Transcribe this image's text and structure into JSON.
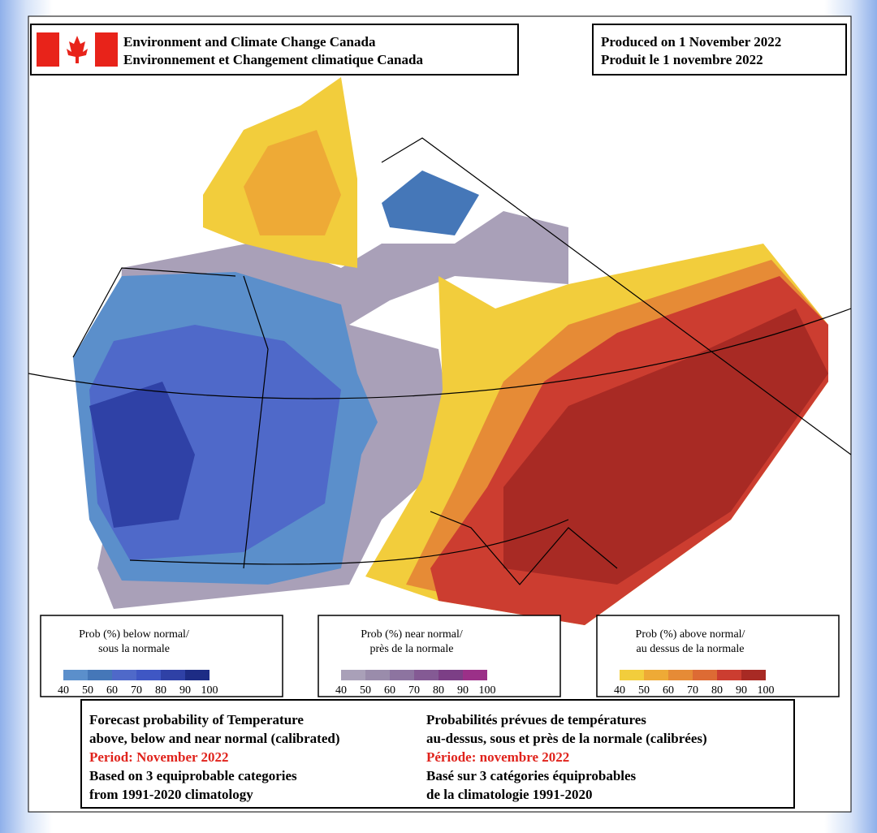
{
  "header": {
    "agency_en": "Environment and Climate Change Canada",
    "agency_fr": "Environnement et Changement climatique Canada",
    "produced_en": "Produced on 1 November 2022",
    "produced_fr": "Produit le 1 novembre 2022"
  },
  "legends": [
    {
      "title_en": "Prob (%) below normal/",
      "title_fr": "sous la normale",
      "colors": [
        "#5b8fcb",
        "#4577b8",
        "#4f69c9",
        "#3f57c4",
        "#2f41a6",
        "#1d2c85"
      ],
      "ticks": [
        40,
        50,
        60,
        70,
        80,
        90,
        100
      ]
    },
    {
      "title_en": "Prob (%) near normal/",
      "title_fr": "près de la normale",
      "colors": [
        "#a9a0b8",
        "#9a8cab",
        "#8d74a0",
        "#845a94",
        "#7c3f86",
        "#9b3088"
      ],
      "ticks": [
        40,
        50,
        60,
        70,
        80,
        90,
        100
      ]
    },
    {
      "title_en": "Prob (%) above normal/",
      "title_fr": "au dessus de la normale",
      "colors": [
        "#f2cd3c",
        "#eeaa36",
        "#e68b36",
        "#dd6b34",
        "#cc3d30",
        "#a82a24"
      ],
      "ticks": [
        40,
        50,
        60,
        70,
        80,
        90,
        100
      ]
    }
  ],
  "footer": {
    "left": [
      "Forecast probability of Temperature",
      "above, below and near normal (calibrated)",
      "Period: November 2022",
      "Based on 3 equiprobable categories",
      " from 1991-2020 climatology"
    ],
    "right": [
      "Probabilités prévues de températures",
      "au-dessus, sous et près de la normale (calibrées)",
      "Période: novembre 2022",
      "Basé sur 3 catégories équiprobables",
      "de la climatologie 1991-2020"
    ]
  }
}
